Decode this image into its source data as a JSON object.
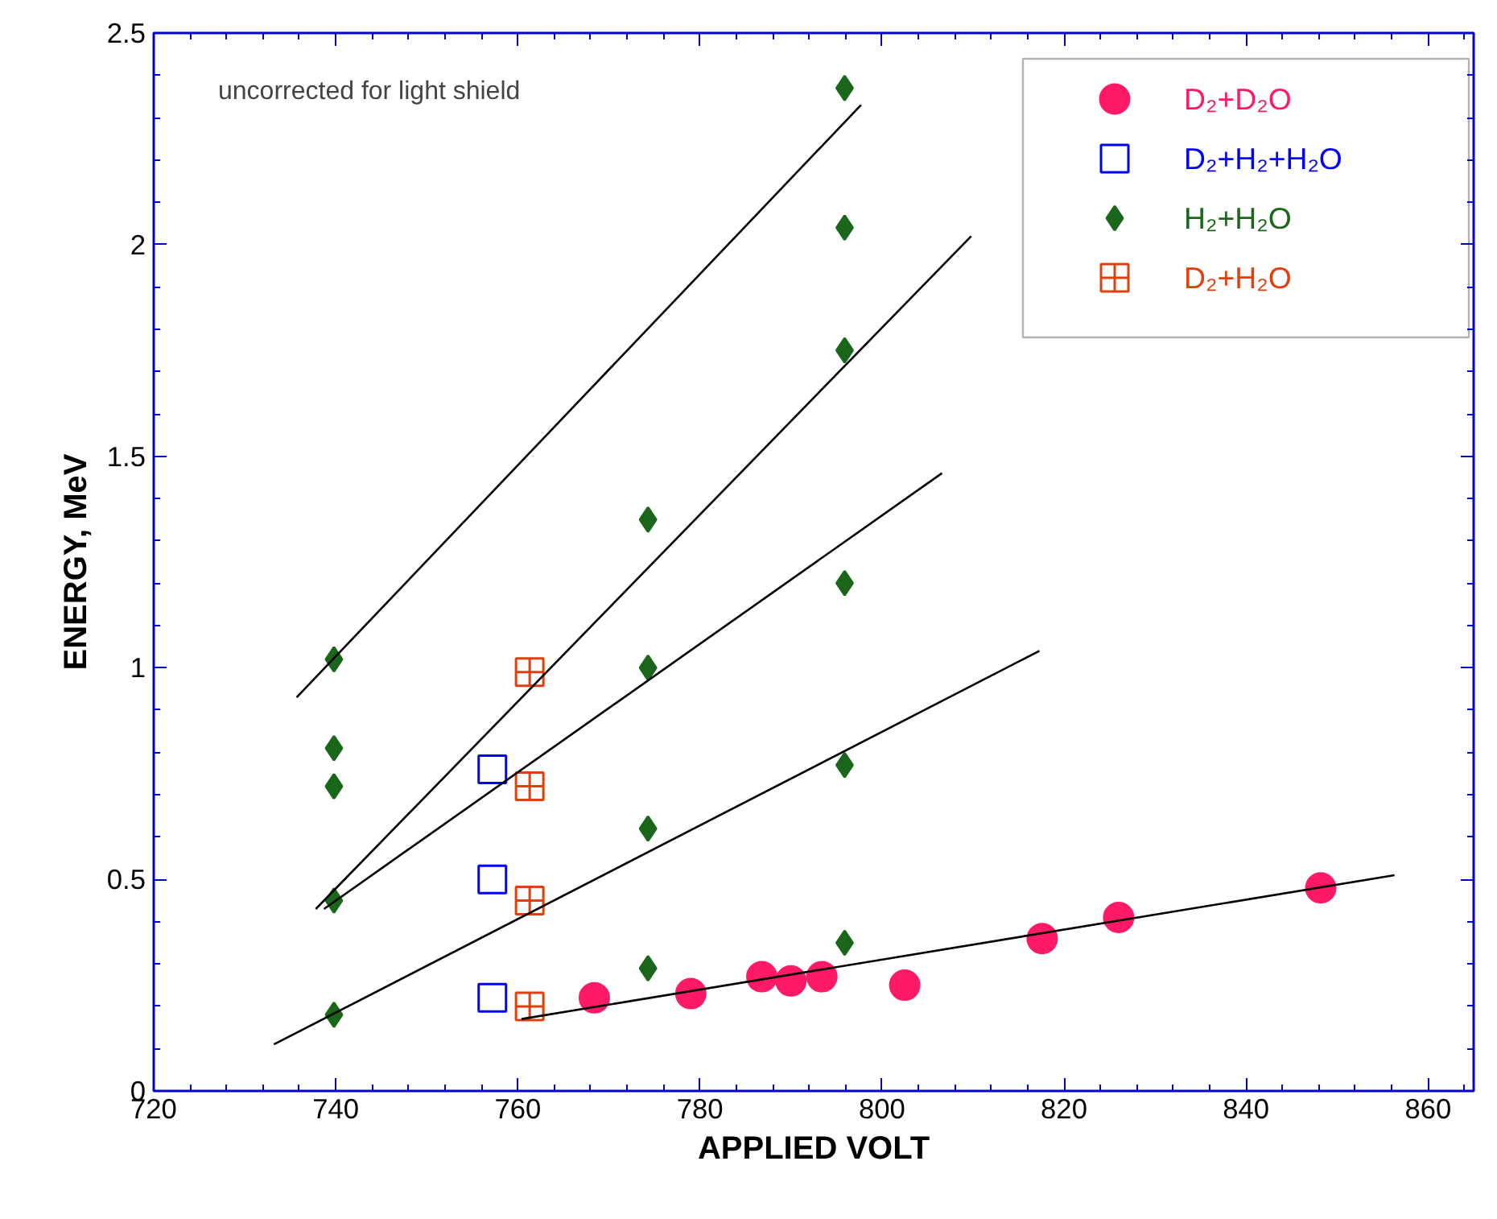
{
  "chart_data": {
    "type": "scatter",
    "xlabel": "APPLIED VOLT",
    "ylabel": "ENERGY, MeV",
    "xlim": [
      720,
      865
    ],
    "ylim": [
      0,
      2.5
    ],
    "xticks": [
      720,
      740,
      760,
      780,
      800,
      820,
      840,
      860
    ],
    "yticks": [
      0,
      0.5,
      1,
      1.5,
      2,
      2.5
    ],
    "grid": false,
    "legend": "top right",
    "annotations": [
      "uncorrected for light shield"
    ],
    "series": [
      {
        "name": "D₂+D₂O",
        "color": "#ff1a66",
        "marker": "circle",
        "x": [
          768.4,
          779.0,
          786.8,
          790.0,
          793.4,
          802.5,
          817.6,
          826.0,
          848.2
        ],
        "values": [
          0.22,
          0.23,
          0.27,
          0.26,
          0.27,
          0.25,
          0.36,
          0.41,
          0.48
        ]
      },
      {
        "name": "D₂+H₂+H₂O",
        "color": "#0000ff",
        "marker": "square",
        "x": [
          757.2,
          757.2,
          757.2
        ],
        "values": [
          0.76,
          0.5,
          0.22
        ]
      },
      {
        "name": "H₂+H₂O",
        "color": "#1a661a",
        "marker": "diamond",
        "x": [
          739.8,
          739.8,
          739.8,
          739.8,
          739.8,
          774.3,
          774.3,
          774.3,
          774.3,
          795.9,
          795.9,
          795.9,
          795.9,
          795.9,
          795.9
        ],
        "values": [
          1.02,
          0.81,
          0.72,
          0.45,
          0.18,
          1.35,
          1.0,
          0.62,
          0.29,
          2.37,
          2.04,
          1.75,
          1.2,
          0.77,
          0.35
        ]
      },
      {
        "name": "D₂+H₂O",
        "color": "#e04010",
        "marker": "cross",
        "x": [
          761.3,
          761.3,
          761.3,
          761.3
        ],
        "values": [
          0.99,
          0.72,
          0.45,
          0.2
        ]
      },
      {
        "type": "line",
        "color": "#000000",
        "x": [
          735.7,
          797.7
        ],
        "values": [
          0.93,
          2.33
        ]
      },
      {
        "type": "line",
        "color": "#000000",
        "x": [
          737.8,
          809.8
        ],
        "values": [
          0.43,
          2.02
        ]
      },
      {
        "type": "line",
        "color": "#000000",
        "x": [
          738.7,
          806.6
        ],
        "values": [
          0.43,
          1.46
        ]
      },
      {
        "type": "line",
        "color": "#000000",
        "x": [
          733.2,
          817.3
        ],
        "values": [
          0.11,
          1.04
        ]
      },
      {
        "type": "line",
        "color": "#000000",
        "x": [
          760.4,
          856.3
        ],
        "values": [
          0.17,
          0.51
        ]
      }
    ]
  }
}
